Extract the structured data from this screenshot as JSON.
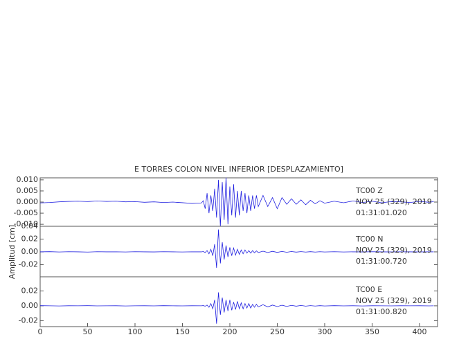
{
  "chart_data": [
    {
      "type": "line",
      "title": "E TORRES COLON NIVEL INFERIOR [DESPLAZAMIENTO]",
      "annotations": [
        "TC00   Z",
        "NOV 25 (329), 2019",
        "01:31:01.020"
      ],
      "xlim": [
        0,
        419
      ],
      "ylim": [
        -0.0109,
        0.0109
      ],
      "yticks": [
        {
          "value": 0.01,
          "label": "0.010"
        },
        0.005,
        {
          "value": 0,
          "label": "0.000"
        },
        -0.005,
        {
          "value": -0.01,
          "label": "-0.010"
        }
      ],
      "x": [
        0,
        10,
        20,
        30,
        40,
        50,
        60,
        70,
        80,
        90,
        100,
        110,
        120,
        130,
        140,
        150,
        160,
        170,
        172,
        174,
        176,
        178,
        180,
        182,
        184,
        186,
        188,
        190,
        192,
        194,
        196,
        198,
        200,
        202,
        204,
        206,
        208,
        210,
        212,
        214,
        216,
        218,
        220,
        222,
        224,
        226,
        228,
        230,
        235,
        240,
        245,
        250,
        255,
        260,
        265,
        270,
        275,
        280,
        285,
        290,
        295,
        300,
        310,
        320,
        330,
        340,
        350,
        360,
        370,
        380,
        390,
        400,
        410,
        415
      ],
      "series": [
        {
          "color": "#2020e0",
          "values": [
            -0.0004,
            -0.0002,
            0.0001,
            0.0003,
            0.0004,
            0.0002,
            0.0005,
            0.0003,
            0.0004,
            0.0001,
            0.0002,
            -0.0001,
            0.0001,
            -0.0002,
            0.0,
            -0.0003,
            -0.0006,
            -0.0004,
            0.0006,
            -0.003,
            0.004,
            -0.005,
            0.003,
            -0.004,
            0.006,
            -0.007,
            0.01,
            -0.011,
            0.009,
            -0.008,
            0.011,
            -0.01,
            0.007,
            -0.006,
            0.008,
            -0.007,
            0.005,
            -0.006,
            0.005,
            -0.004,
            0.004,
            -0.005,
            0.003,
            -0.004,
            0.003,
            -0.003,
            0.003,
            -0.002,
            0.003,
            -0.002,
            0.002,
            -0.003,
            0.002,
            -0.001,
            0.0015,
            -0.001,
            0.001,
            -0.0012,
            0.0008,
            -0.0008,
            0.0006,
            -0.0005,
            0.0004,
            -0.0003,
            0.0005,
            -0.0002,
            0.0004,
            -0.0003,
            0.0002,
            0.0001,
            -0.0002,
            0.0003,
            -0.0001,
            0.0002
          ]
        }
      ]
    },
    {
      "type": "line",
      "ylabel": "Amplitud [cm]",
      "annotations": [
        "TC00   N",
        "NOV 25 (329), 2019",
        "01:31:00.720"
      ],
      "xlim": [
        0,
        419
      ],
      "ylim": [
        -0.039,
        0.04
      ],
      "yticks": [
        0.04,
        0.02,
        {
          "value": 0,
          "label": "0.00"
        },
        -0.02
      ],
      "x": [
        0,
        10,
        20,
        30,
        40,
        50,
        60,
        70,
        80,
        90,
        100,
        110,
        120,
        130,
        140,
        150,
        160,
        170,
        172,
        174,
        176,
        178,
        180,
        182,
        184,
        186,
        188,
        190,
        192,
        194,
        196,
        198,
        200,
        202,
        204,
        206,
        208,
        210,
        212,
        214,
        216,
        218,
        220,
        222,
        224,
        226,
        228,
        230,
        235,
        240,
        245,
        250,
        255,
        260,
        265,
        270,
        275,
        280,
        285,
        290,
        295,
        300,
        310,
        320,
        330,
        340,
        350,
        360,
        370,
        380,
        390,
        400,
        410,
        415
      ],
      "series": [
        {
          "color": "#2020e0",
          "values": [
            0,
            0.0003,
            -0.0002,
            0.0002,
            0,
            -0.0003,
            0.0002,
            0,
            0.0001,
            -0.0002,
            0.0002,
            0,
            -0.0001,
            0.0002,
            0,
            -0.0002,
            0.0001,
            0,
            0.0005,
            -0.001,
            0.002,
            -0.003,
            0.004,
            -0.006,
            0.012,
            -0.025,
            0.035,
            -0.018,
            0.015,
            -0.012,
            0.01,
            -0.008,
            0.007,
            -0.006,
            0.006,
            -0.005,
            0.004,
            -0.004,
            0.003,
            -0.003,
            0.003,
            -0.002,
            0.002,
            -0.002,
            0.002,
            -0.0015,
            0.0015,
            -0.001,
            0.001,
            -0.001,
            0.0008,
            -0.0008,
            0.0006,
            -0.0006,
            0.0005,
            -0.0004,
            0.0004,
            -0.0003,
            0.0003,
            -0.0003,
            0.0002,
            -0.0002,
            0.0002,
            -0.0002,
            0.0001,
            -0.0001,
            0.0002,
            0,
            -0.0001,
            0.0001,
            0,
            -0.0001,
            0.0001,
            0
          ]
        }
      ]
    },
    {
      "type": "line",
      "annotations": [
        "TC00   E",
        "NOV 25 (329), 2019",
        "01:31:00.820"
      ],
      "xlim": [
        0,
        419
      ],
      "ylim": [
        -0.028,
        0.039
      ],
      "xticks": [
        0,
        50,
        100,
        150,
        200,
        250,
        300,
        350,
        400
      ],
      "yticks": [
        0.02,
        {
          "value": 0,
          "label": "0.00"
        },
        -0.02
      ],
      "x": [
        0,
        10,
        20,
        30,
        40,
        50,
        60,
        70,
        80,
        90,
        100,
        110,
        120,
        130,
        140,
        150,
        160,
        170,
        172,
        174,
        176,
        178,
        180,
        182,
        184,
        186,
        188,
        190,
        192,
        194,
        196,
        198,
        200,
        202,
        204,
        206,
        208,
        210,
        212,
        214,
        216,
        218,
        220,
        222,
        224,
        226,
        228,
        230,
        235,
        240,
        245,
        250,
        255,
        260,
        265,
        270,
        275,
        280,
        285,
        290,
        295,
        300,
        310,
        320,
        330,
        340,
        350,
        360,
        370,
        380,
        390,
        400,
        410,
        415
      ],
      "series": [
        {
          "color": "#2020e0",
          "values": [
            0.0002,
            0,
            -0.0002,
            0.0001,
            0,
            0.0002,
            -0.0001,
            0,
            0.0001,
            -0.0002,
            0,
            0.0001,
            -0.0001,
            0.0002,
            0,
            -0.0001,
            0.0001,
            0,
            0.0003,
            -0.0005,
            0.001,
            -0.002,
            0.003,
            -0.004,
            0.008,
            -0.024,
            0.018,
            -0.012,
            0.011,
            -0.009,
            0.008,
            -0.007,
            0.008,
            -0.006,
            0.005,
            -0.005,
            0.006,
            -0.004,
            0.004,
            -0.004,
            0.003,
            -0.003,
            0.003,
            -0.003,
            0.002,
            -0.002,
            0.002,
            -0.0015,
            0.0015,
            -0.0015,
            0.001,
            -0.001,
            0.0008,
            -0.0008,
            0.0006,
            -0.0005,
            0.0005,
            -0.0004,
            0.0003,
            -0.0003,
            0.0002,
            -0.0002,
            0.0002,
            -0.0001,
            0.0001,
            -0.0002,
            0.0001,
            0,
            -0.0001,
            0.0001,
            0,
            0.0001,
            -0.0001,
            0
          ]
        }
      ]
    }
  ]
}
